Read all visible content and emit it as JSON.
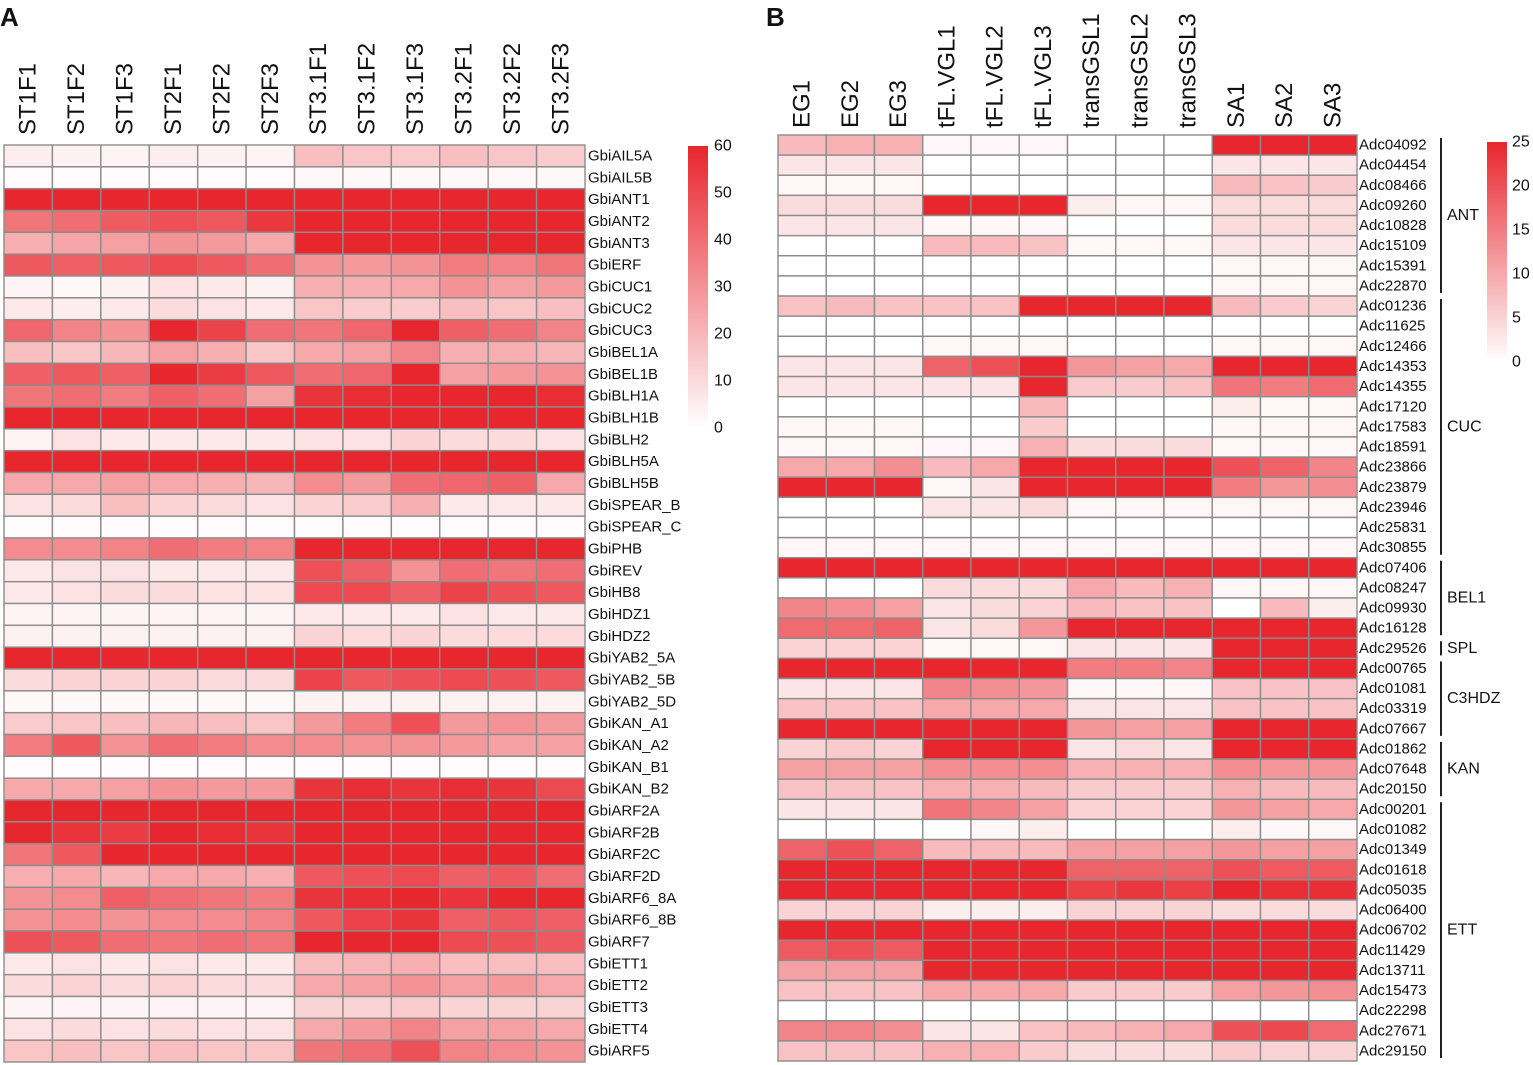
{
  "chart_data": [
    {
      "type": "heatmap",
      "panel_label": "A",
      "columns": [
        "ST1F1",
        "ST1F2",
        "ST1F3",
        "ST2F1",
        "ST2F2",
        "ST2F3",
        "ST3.1F1",
        "ST3.1F2",
        "ST3.1F3",
        "ST3.2F1",
        "ST3.2F2",
        "ST3.2F3"
      ],
      "rows": [
        "GbiAIL5A",
        "GbiAIL5B",
        "GbiANT1",
        "GbiANT2",
        "GbiANT3",
        "GbiERF",
        "GbiCUC1",
        "GbiCUC2",
        "GbiCUC3",
        "GbiBEL1A",
        "GbiBEL1B",
        "GbiBLH1A",
        "GbiBLH1B",
        "GbiBLH2",
        "GbiBLH5A",
        "GbiBLH5B",
        "GbiSPEAR_B",
        "GbiSPEAR_C",
        "GbiPHB",
        "GbiREV",
        "GbiHB8",
        "GbiHDZ1",
        "GbiHDZ2",
        "GbiYAB2_5A",
        "GbiYAB2_5B",
        "GbiYAB2_5D",
        "GbiKAN_A1",
        "GbiKAN_A2",
        "GbiKAN_B1",
        "GbiKAN_B2",
        "GbiARF2A",
        "GbiARF2B",
        "GbiARF2C",
        "GbiARF2D",
        "GbiARF6_8A",
        "GbiARF6_8B",
        "GbiARF7",
        "GbiETT1",
        "GbiETT2",
        "GbiETT3",
        "GbiETT4",
        "GbiARF5"
      ],
      "values": [
        [
          5,
          4,
          3,
          5,
          4,
          3,
          18,
          16,
          15,
          18,
          16,
          14
        ],
        [
          1,
          1,
          1,
          1,
          1,
          1,
          2,
          2,
          2,
          2,
          2,
          2
        ],
        [
          60,
          60,
          60,
          60,
          60,
          60,
          60,
          60,
          60,
          60,
          60,
          60
        ],
        [
          38,
          40,
          45,
          48,
          46,
          55,
          60,
          60,
          60,
          60,
          60,
          60
        ],
        [
          22,
          25,
          26,
          30,
          28,
          24,
          60,
          60,
          60,
          60,
          60,
          60
        ],
        [
          46,
          44,
          46,
          50,
          46,
          40,
          30,
          28,
          30,
          36,
          34,
          38
        ],
        [
          3,
          2,
          4,
          8,
          6,
          4,
          22,
          22,
          24,
          30,
          26,
          28
        ],
        [
          6,
          5,
          6,
          10,
          8,
          6,
          16,
          14,
          14,
          18,
          16,
          18
        ],
        [
          42,
          34,
          30,
          60,
          52,
          40,
          38,
          42,
          60,
          44,
          40,
          34
        ],
        [
          18,
          16,
          20,
          26,
          22,
          16,
          24,
          26,
          34,
          22,
          22,
          20
        ],
        [
          44,
          46,
          44,
          60,
          54,
          46,
          40,
          42,
          60,
          26,
          28,
          30
        ],
        [
          38,
          40,
          36,
          44,
          40,
          26,
          56,
          58,
          60,
          60,
          60,
          58
        ],
        [
          60,
          60,
          60,
          60,
          60,
          60,
          60,
          60,
          60,
          60,
          60,
          60
        ],
        [
          3,
          8,
          6,
          6,
          6,
          6,
          8,
          8,
          12,
          10,
          10,
          8
        ],
        [
          60,
          60,
          60,
          60,
          60,
          60,
          60,
          60,
          60,
          60,
          60,
          60
        ],
        [
          24,
          24,
          26,
          24,
          22,
          20,
          32,
          28,
          40,
          42,
          44,
          24
        ],
        [
          8,
          10,
          18,
          12,
          10,
          8,
          12,
          14,
          22,
          6,
          6,
          6
        ],
        [
          1,
          1,
          1,
          1,
          1,
          1,
          1,
          1,
          1,
          1,
          1,
          1
        ],
        [
          32,
          32,
          34,
          40,
          36,
          34,
          60,
          60,
          60,
          60,
          60,
          60
        ],
        [
          6,
          8,
          8,
          6,
          6,
          6,
          48,
          44,
          30,
          40,
          38,
          40
        ],
        [
          6,
          8,
          10,
          10,
          8,
          8,
          50,
          50,
          44,
          52,
          48,
          46
        ],
        [
          3,
          3,
          3,
          3,
          3,
          3,
          6,
          6,
          6,
          8,
          6,
          6
        ],
        [
          4,
          4,
          4,
          4,
          4,
          4,
          12,
          10,
          12,
          10,
          10,
          10
        ],
        [
          60,
          60,
          60,
          60,
          60,
          60,
          60,
          60,
          60,
          60,
          60,
          60
        ],
        [
          10,
          12,
          12,
          12,
          10,
          10,
          52,
          46,
          48,
          50,
          48,
          46
        ],
        [
          2,
          2,
          2,
          2,
          2,
          2,
          4,
          4,
          4,
          4,
          4,
          4
        ],
        [
          14,
          16,
          18,
          20,
          18,
          16,
          28,
          36,
          48,
          28,
          30,
          28
        ],
        [
          36,
          46,
          30,
          40,
          36,
          32,
          32,
          30,
          30,
          28,
          26,
          26
        ],
        [
          1,
          1,
          1,
          1,
          1,
          1,
          1,
          1,
          1,
          1,
          1,
          1
        ],
        [
          24,
          24,
          26,
          30,
          28,
          28,
          56,
          58,
          56,
          58,
          56,
          50
        ],
        [
          60,
          60,
          60,
          60,
          60,
          60,
          60,
          60,
          60,
          60,
          60,
          60
        ],
        [
          60,
          56,
          54,
          60,
          58,
          56,
          60,
          60,
          60,
          60,
          60,
          60
        ],
        [
          38,
          46,
          60,
          60,
          60,
          60,
          60,
          60,
          60,
          60,
          60,
          60
        ],
        [
          22,
          24,
          20,
          24,
          24,
          22,
          46,
          48,
          50,
          44,
          46,
          40
        ],
        [
          30,
          32,
          44,
          40,
          38,
          36,
          56,
          58,
          60,
          56,
          60,
          60
        ],
        [
          30,
          32,
          30,
          32,
          32,
          34,
          46,
          52,
          56,
          44,
          46,
          44
        ],
        [
          48,
          46,
          40,
          38,
          40,
          38,
          60,
          60,
          60,
          50,
          48,
          46
        ],
        [
          6,
          8,
          6,
          8,
          6,
          6,
          18,
          20,
          22,
          18,
          18,
          18
        ],
        [
          10,
          12,
          10,
          12,
          10,
          10,
          24,
          26,
          30,
          26,
          28,
          24
        ],
        [
          3,
          3,
          3,
          3,
          3,
          3,
          12,
          12,
          14,
          12,
          12,
          12
        ],
        [
          8,
          10,
          8,
          10,
          8,
          8,
          24,
          28,
          34,
          26,
          26,
          24
        ],
        [
          16,
          18,
          16,
          18,
          16,
          16,
          38,
          40,
          48,
          34,
          32,
          30
        ]
      ],
      "colorbar": {
        "min": 0,
        "max": 60,
        "ticks": [
          0,
          10,
          20,
          30,
          40,
          50,
          60
        ],
        "low_color": "#ffffff",
        "high_color": "#e8262d"
      }
    },
    {
      "type": "heatmap",
      "panel_label": "B",
      "columns": [
        "EG1",
        "EG2",
        "EG3",
        "tFL.VGL1",
        "tFL.VGL2",
        "tFL.VGL3",
        "transGSL1",
        "transGSL2",
        "transGSL3",
        "SA1",
        "SA2",
        "SA3"
      ],
      "rows": [
        "Adc04092",
        "Adc04454",
        "Adc08466",
        "Adc09260",
        "Adc10828",
        "Adc15109",
        "Adc15391",
        "Adc22870",
        "Adc01236",
        "Adc11625",
        "Adc12466",
        "Adc14353",
        "Adc14355",
        "Adc17120",
        "Adc17583",
        "Adc18591",
        "Adc23866",
        "Adc23879",
        "Adc23946",
        "Adc25831",
        "Adc30855",
        "Adc07406",
        "Adc08247",
        "Adc09930",
        "Adc16128",
        "Adc29526",
        "Adc00765",
        "Adc01081",
        "Adc03319",
        "Adc07667",
        "Adc01862",
        "Adc07648",
        "Adc20150",
        "Adc00201",
        "Adc01082",
        "Adc01349",
        "Adc01618",
        "Adc05035",
        "Adc06400",
        "Adc06702",
        "Adc11429",
        "Adc13711",
        "Adc15473",
        "Adc22298",
        "Adc27671",
        "Adc29150"
      ],
      "values": [
        [
          8,
          9,
          9,
          1,
          1,
          1,
          0,
          0,
          0,
          25,
          25,
          25
        ],
        [
          3,
          3,
          3,
          0,
          0,
          0,
          0,
          0,
          0,
          3,
          3,
          3
        ],
        [
          1,
          1,
          1,
          0,
          0,
          0,
          0,
          0,
          0,
          8,
          7,
          6
        ],
        [
          4,
          4,
          4,
          25,
          25,
          25,
          2,
          1,
          1,
          4,
          4,
          4
        ],
        [
          3,
          3,
          3,
          1,
          1,
          1,
          0,
          0,
          0,
          4,
          4,
          4
        ],
        [
          0,
          0,
          0,
          8,
          8,
          7,
          1,
          1,
          1,
          3,
          3,
          3
        ],
        [
          0,
          0,
          0,
          0,
          0,
          0,
          0,
          0,
          0,
          1,
          1,
          1
        ],
        [
          0,
          0,
          0,
          0,
          0,
          0,
          0,
          0,
          0,
          1,
          1,
          1
        ],
        [
          7,
          8,
          7,
          7,
          7,
          25,
          25,
          25,
          25,
          8,
          6,
          5
        ],
        [
          0,
          0,
          0,
          0,
          0,
          0,
          0,
          0,
          0,
          0,
          0,
          0
        ],
        [
          0,
          0,
          0,
          1,
          1,
          1,
          0,
          0,
          0,
          1,
          1,
          1
        ],
        [
          3,
          3,
          3,
          18,
          20,
          25,
          12,
          11,
          10,
          25,
          25,
          25
        ],
        [
          3,
          3,
          3,
          3,
          3,
          25,
          6,
          6,
          7,
          16,
          15,
          17
        ],
        [
          0,
          0,
          0,
          0,
          0,
          8,
          0,
          0,
          0,
          2,
          1,
          1
        ],
        [
          1,
          1,
          1,
          0,
          0,
          6,
          0,
          0,
          0,
          1,
          1,
          1
        ],
        [
          1,
          1,
          1,
          1,
          1,
          9,
          4,
          4,
          4,
          1,
          1,
          1
        ],
        [
          10,
          10,
          13,
          8,
          10,
          25,
          25,
          25,
          25,
          20,
          18,
          14
        ],
        [
          25,
          25,
          25,
          1,
          3,
          25,
          25,
          25,
          25,
          15,
          12,
          13
        ],
        [
          0,
          0,
          0,
          3,
          3,
          4,
          1,
          1,
          1,
          1,
          1,
          1
        ],
        [
          0,
          0,
          0,
          0,
          0,
          0,
          0,
          0,
          0,
          0,
          0,
          0
        ],
        [
          1,
          1,
          1,
          1,
          1,
          1,
          1,
          1,
          1,
          1,
          1,
          1
        ],
        [
          25,
          25,
          25,
          25,
          25,
          25,
          25,
          25,
          25,
          25,
          25,
          25
        ],
        [
          0,
          0,
          0,
          4,
          4,
          4,
          10,
          8,
          9,
          1,
          1,
          1
        ],
        [
          14,
          13,
          11,
          3,
          4,
          5,
          8,
          7,
          7,
          0,
          8,
          2
        ],
        [
          17,
          17,
          18,
          3,
          4,
          12,
          25,
          25,
          25,
          25,
          25,
          25
        ],
        [
          5,
          5,
          5,
          1,
          1,
          1,
          3,
          3,
          3,
          25,
          25,
          25
        ],
        [
          25,
          25,
          25,
          25,
          25,
          25,
          15,
          15,
          14,
          25,
          25,
          25
        ],
        [
          3,
          3,
          3,
          14,
          13,
          12,
          1,
          1,
          1,
          7,
          7,
          7
        ],
        [
          7,
          7,
          7,
          10,
          10,
          10,
          3,
          3,
          3,
          7,
          7,
          7
        ],
        [
          25,
          25,
          25,
          25,
          25,
          25,
          12,
          11,
          11,
          25,
          25,
          25
        ],
        [
          5,
          6,
          5,
          25,
          25,
          25,
          3,
          4,
          3,
          25,
          25,
          25
        ],
        [
          11,
          11,
          11,
          13,
          13,
          13,
          9,
          9,
          9,
          13,
          12,
          12
        ],
        [
          7,
          7,
          7,
          9,
          9,
          8,
          6,
          6,
          6,
          9,
          8,
          8
        ],
        [
          3,
          3,
          3,
          16,
          14,
          11,
          5,
          5,
          5,
          12,
          11,
          10
        ],
        [
          0,
          0,
          0,
          0,
          1,
          2,
          0,
          0,
          0,
          2,
          1,
          1
        ],
        [
          18,
          20,
          18,
          8,
          8,
          8,
          11,
          11,
          11,
          12,
          11,
          11
        ],
        [
          25,
          25,
          25,
          25,
          25,
          25,
          18,
          18,
          18,
          20,
          19,
          19
        ],
        [
          25,
          25,
          25,
          25,
          25,
          25,
          22,
          23,
          22,
          25,
          24,
          24
        ],
        [
          5,
          5,
          5,
          2,
          2,
          2,
          5,
          5,
          5,
          4,
          4,
          4
        ],
        [
          25,
          25,
          25,
          25,
          25,
          25,
          25,
          25,
          25,
          25,
          25,
          25
        ],
        [
          19,
          20,
          19,
          25,
          25,
          25,
          25,
          25,
          25,
          25,
          25,
          25
        ],
        [
          11,
          11,
          11,
          25,
          25,
          25,
          25,
          25,
          25,
          25,
          25,
          25
        ],
        [
          7,
          7,
          7,
          10,
          10,
          10,
          6,
          6,
          6,
          11,
          12,
          13
        ],
        [
          0,
          0,
          0,
          0,
          0,
          0,
          0,
          0,
          0,
          0,
          0,
          0
        ],
        [
          14,
          14,
          13,
          3,
          3,
          7,
          8,
          9,
          10,
          20,
          21,
          17
        ],
        [
          7,
          7,
          7,
          9,
          9,
          6,
          4,
          4,
          4,
          6,
          5,
          5
        ]
      ],
      "groups": [
        {
          "label": "ANT",
          "start": 0,
          "end": 7
        },
        {
          "label": "CUC",
          "start": 8,
          "end": 20
        },
        {
          "label": "BEL1",
          "start": 21,
          "end": 24
        },
        {
          "label": "SPL",
          "start": 25,
          "end": 25
        },
        {
          "label": "C3HDZ",
          "start": 26,
          "end": 29
        },
        {
          "label": "KAN",
          "start": 30,
          "end": 32
        },
        {
          "label": "ETT",
          "start": 33,
          "end": 45
        }
      ],
      "colorbar": {
        "min": 0,
        "max": 25,
        "ticks": [
          0,
          5,
          10,
          15,
          20,
          25
        ],
        "low_color": "#ffffff",
        "high_color": "#e8262d"
      }
    }
  ]
}
